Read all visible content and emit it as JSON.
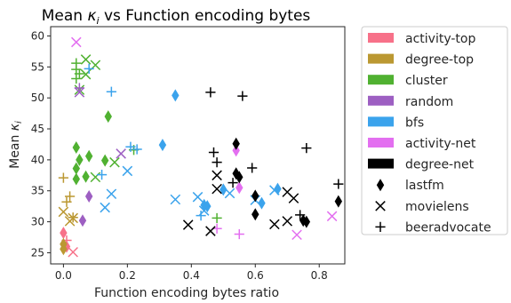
{
  "chart_data": {
    "type": "scatter",
    "title": "Mean κᵢ vs Function encoding bytes",
    "title_main": "Mean ",
    "title_symbol": "κ",
    "title_sub": "i",
    "title_rest": " vs Function encoding bytes",
    "xlabel": "Function encoding bytes ratio",
    "ylabel_main": "Mean ",
    "ylabel_symbol": "κ",
    "ylabel_sub": "i",
    "xlim": [
      -0.04,
      0.88
    ],
    "ylim": [
      23.2,
      61.5
    ],
    "xticks": [
      0.0,
      0.2,
      0.4,
      0.6,
      0.8
    ],
    "yticks": [
      25,
      30,
      35,
      40,
      45,
      50,
      55,
      60
    ],
    "xtick_labels": [
      "0.0",
      "0.2",
      "0.4",
      "0.6",
      "0.8"
    ],
    "ytick_labels": [
      "25",
      "30",
      "35",
      "40",
      "45",
      "50",
      "55",
      "60"
    ],
    "grid": false,
    "legend_position": "outside-right",
    "colors": {
      "activity-top": "#f77189",
      "degree-top": "#bb9832",
      "cluster": "#50b131",
      "random": "#9d5fc2",
      "bfs": "#3ba3ec",
      "activity-net": "#e36ff0",
      "degree-net": "#000000"
    },
    "legend": {
      "colors": [
        "activity-top",
        "degree-top",
        "cluster",
        "random",
        "bfs",
        "activity-net",
        "degree-net"
      ],
      "markers": [
        "lastfm",
        "movielens",
        "beeradvocate"
      ]
    },
    "points": [
      {
        "x": 0.0,
        "y": 28.2,
        "m": "lastfm",
        "c": "activity-top"
      },
      {
        "x": 0.01,
        "y": 26.0,
        "m": "lastfm",
        "c": "activity-top"
      },
      {
        "x": 0.03,
        "y": 25.1,
        "m": "movielens",
        "c": "activity-top"
      },
      {
        "x": 0.01,
        "y": 27.0,
        "m": "beeradvocate",
        "c": "activity-top"
      },
      {
        "x": 0.0,
        "y": 26.4,
        "m": "lastfm",
        "c": "degree-top"
      },
      {
        "x": 0.0,
        "y": 25.6,
        "m": "lastfm",
        "c": "degree-top"
      },
      {
        "x": 0.0,
        "y": 31.6,
        "m": "movielens",
        "c": "degree-top"
      },
      {
        "x": 0.02,
        "y": 30.1,
        "m": "movielens",
        "c": "degree-top"
      },
      {
        "x": 0.03,
        "y": 30.6,
        "m": "movielens",
        "c": "degree-top"
      },
      {
        "x": 0.0,
        "y": 37.1,
        "m": "beeradvocate",
        "c": "degree-top"
      },
      {
        "x": 0.01,
        "y": 33.2,
        "m": "beeradvocate",
        "c": "degree-top"
      },
      {
        "x": 0.03,
        "y": 30.7,
        "m": "beeradvocate",
        "c": "degree-top"
      },
      {
        "x": 0.02,
        "y": 34.1,
        "m": "beeradvocate",
        "c": "degree-top"
      },
      {
        "x": 0.04,
        "y": 42.0,
        "m": "lastfm",
        "c": "cluster"
      },
      {
        "x": 0.05,
        "y": 40.0,
        "m": "lastfm",
        "c": "cluster"
      },
      {
        "x": 0.04,
        "y": 38.6,
        "m": "lastfm",
        "c": "cluster"
      },
      {
        "x": 0.04,
        "y": 36.9,
        "m": "lastfm",
        "c": "cluster"
      },
      {
        "x": 0.08,
        "y": 40.6,
        "m": "lastfm",
        "c": "cluster"
      },
      {
        "x": 0.07,
        "y": 37.3,
        "m": "lastfm",
        "c": "cluster"
      },
      {
        "x": 0.14,
        "y": 47.0,
        "m": "lastfm",
        "c": "cluster"
      },
      {
        "x": 0.13,
        "y": 39.9,
        "m": "lastfm",
        "c": "cluster"
      },
      {
        "x": 0.07,
        "y": 56.2,
        "m": "movielens",
        "c": "cluster"
      },
      {
        "x": 0.1,
        "y": 55.3,
        "m": "movielens",
        "c": "cluster"
      },
      {
        "x": 0.07,
        "y": 53.8,
        "m": "movielens",
        "c": "cluster"
      },
      {
        "x": 0.05,
        "y": 51.3,
        "m": "movielens",
        "c": "cluster"
      },
      {
        "x": 0.1,
        "y": 37.2,
        "m": "movielens",
        "c": "cluster"
      },
      {
        "x": 0.16,
        "y": 39.6,
        "m": "movielens",
        "c": "cluster"
      },
      {
        "x": 0.04,
        "y": 55.6,
        "m": "beeradvocate",
        "c": "cluster"
      },
      {
        "x": 0.04,
        "y": 54.6,
        "m": "beeradvocate",
        "c": "cluster"
      },
      {
        "x": 0.05,
        "y": 53.9,
        "m": "beeradvocate",
        "c": "cluster"
      },
      {
        "x": 0.04,
        "y": 53.1,
        "m": "beeradvocate",
        "c": "cluster"
      },
      {
        "x": 0.22,
        "y": 41.6,
        "m": "beeradvocate",
        "c": "cluster"
      },
      {
        "x": 0.48,
        "y": 30.6,
        "m": "beeradvocate",
        "c": "cluster"
      },
      {
        "x": 0.06,
        "y": 30.2,
        "m": "lastfm",
        "c": "random"
      },
      {
        "x": 0.08,
        "y": 34.1,
        "m": "lastfm",
        "c": "random"
      },
      {
        "x": 0.05,
        "y": 50.9,
        "m": "movielens",
        "c": "random"
      },
      {
        "x": 0.18,
        "y": 41.0,
        "m": "movielens",
        "c": "random"
      },
      {
        "x": 0.05,
        "y": 51.6,
        "m": "beeradvocate",
        "c": "random"
      },
      {
        "x": 0.35,
        "y": 50.4,
        "m": "lastfm",
        "c": "bfs"
      },
      {
        "x": 0.31,
        "y": 42.4,
        "m": "lastfm",
        "c": "bfs"
      },
      {
        "x": 0.44,
        "y": 32.7,
        "m": "lastfm",
        "c": "bfs"
      },
      {
        "x": 0.45,
        "y": 32.5,
        "m": "lastfm",
        "c": "bfs"
      },
      {
        "x": 0.5,
        "y": 35.2,
        "m": "lastfm",
        "c": "bfs"
      },
      {
        "x": 0.62,
        "y": 33.0,
        "m": "lastfm",
        "c": "bfs"
      },
      {
        "x": 0.67,
        "y": 35.3,
        "m": "lastfm",
        "c": "bfs"
      },
      {
        "x": 0.13,
        "y": 32.3,
        "m": "movielens",
        "c": "bfs"
      },
      {
        "x": 0.2,
        "y": 38.2,
        "m": "movielens",
        "c": "bfs"
      },
      {
        "x": 0.35,
        "y": 33.6,
        "m": "movielens",
        "c": "bfs"
      },
      {
        "x": 0.42,
        "y": 34.0,
        "m": "movielens",
        "c": "bfs"
      },
      {
        "x": 0.44,
        "y": 31.8,
        "m": "movielens",
        "c": "bfs"
      },
      {
        "x": 0.52,
        "y": 34.6,
        "m": "movielens",
        "c": "bfs"
      },
      {
        "x": 0.6,
        "y": 33.5,
        "m": "movielens",
        "c": "bfs"
      },
      {
        "x": 0.66,
        "y": 35.1,
        "m": "movielens",
        "c": "bfs"
      },
      {
        "x": 0.15,
        "y": 34.5,
        "m": "movielens",
        "c": "bfs"
      },
      {
        "x": 0.08,
        "y": 54.7,
        "m": "beeradvocate",
        "c": "bfs"
      },
      {
        "x": 0.15,
        "y": 51.0,
        "m": "beeradvocate",
        "c": "bfs"
      },
      {
        "x": 0.21,
        "y": 42.1,
        "m": "beeradvocate",
        "c": "bfs"
      },
      {
        "x": 0.23,
        "y": 41.7,
        "m": "beeradvocate",
        "c": "bfs"
      },
      {
        "x": 0.43,
        "y": 31.0,
        "m": "beeradvocate",
        "c": "bfs"
      },
      {
        "x": 0.12,
        "y": 37.6,
        "m": "beeradvocate",
        "c": "bfs"
      },
      {
        "x": 0.54,
        "y": 41.5,
        "m": "lastfm",
        "c": "activity-net"
      },
      {
        "x": 0.55,
        "y": 35.5,
        "m": "lastfm",
        "c": "activity-net"
      },
      {
        "x": 0.04,
        "y": 59.0,
        "m": "movielens",
        "c": "activity-net"
      },
      {
        "x": 0.73,
        "y": 27.9,
        "m": "movielens",
        "c": "activity-net"
      },
      {
        "x": 0.84,
        "y": 30.9,
        "m": "movielens",
        "c": "activity-net"
      },
      {
        "x": 0.48,
        "y": 28.9,
        "m": "beeradvocate",
        "c": "activity-net"
      },
      {
        "x": 0.55,
        "y": 28.0,
        "m": "beeradvocate",
        "c": "activity-net"
      },
      {
        "x": 0.54,
        "y": 42.6,
        "m": "lastfm",
        "c": "degree-net"
      },
      {
        "x": 0.54,
        "y": 37.8,
        "m": "lastfm",
        "c": "degree-net"
      },
      {
        "x": 0.55,
        "y": 37.2,
        "m": "lastfm",
        "c": "degree-net"
      },
      {
        "x": 0.6,
        "y": 34.2,
        "m": "lastfm",
        "c": "degree-net"
      },
      {
        "x": 0.6,
        "y": 31.2,
        "m": "lastfm",
        "c": "degree-net"
      },
      {
        "x": 0.75,
        "y": 30.2,
        "m": "lastfm",
        "c": "degree-net"
      },
      {
        "x": 0.76,
        "y": 30.0,
        "m": "lastfm",
        "c": "degree-net"
      },
      {
        "x": 0.86,
        "y": 33.3,
        "m": "lastfm",
        "c": "degree-net"
      },
      {
        "x": 0.39,
        "y": 29.5,
        "m": "movielens",
        "c": "degree-net"
      },
      {
        "x": 0.46,
        "y": 28.5,
        "m": "movielens",
        "c": "degree-net"
      },
      {
        "x": 0.48,
        "y": 35.3,
        "m": "movielens",
        "c": "degree-net"
      },
      {
        "x": 0.48,
        "y": 37.5,
        "m": "movielens",
        "c": "degree-net"
      },
      {
        "x": 0.66,
        "y": 29.6,
        "m": "movielens",
        "c": "degree-net"
      },
      {
        "x": 0.7,
        "y": 30.1,
        "m": "movielens",
        "c": "degree-net"
      },
      {
        "x": 0.7,
        "y": 34.8,
        "m": "movielens",
        "c": "degree-net"
      },
      {
        "x": 0.72,
        "y": 33.8,
        "m": "movielens",
        "c": "degree-net"
      },
      {
        "x": 0.46,
        "y": 50.9,
        "m": "beeradvocate",
        "c": "degree-net"
      },
      {
        "x": 0.56,
        "y": 50.3,
        "m": "beeradvocate",
        "c": "degree-net"
      },
      {
        "x": 0.47,
        "y": 41.2,
        "m": "beeradvocate",
        "c": "degree-net"
      },
      {
        "x": 0.48,
        "y": 39.6,
        "m": "beeradvocate",
        "c": "degree-net"
      },
      {
        "x": 0.59,
        "y": 38.7,
        "m": "beeradvocate",
        "c": "degree-net"
      },
      {
        "x": 0.53,
        "y": 36.3,
        "m": "beeradvocate",
        "c": "degree-net"
      },
      {
        "x": 0.76,
        "y": 41.9,
        "m": "beeradvocate",
        "c": "degree-net"
      },
      {
        "x": 0.74,
        "y": 31.1,
        "m": "beeradvocate",
        "c": "degree-net"
      },
      {
        "x": 0.86,
        "y": 36.1,
        "m": "beeradvocate",
        "c": "degree-net"
      }
    ]
  }
}
